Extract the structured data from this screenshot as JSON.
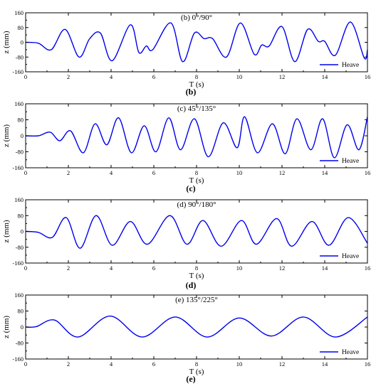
{
  "chart_data": [
    {
      "panel": "b",
      "type": "line",
      "title": "(b) 0°/90°",
      "caption": "(b)",
      "xlabel": "T (s)",
      "ylabel": "z (mm)",
      "xlim": [
        0,
        16
      ],
      "ylim": [
        -160,
        160
      ],
      "xticks": [
        0,
        2,
        4,
        6,
        8,
        10,
        12,
        14,
        16
      ],
      "yticks": [
        -160,
        -80,
        0,
        80,
        160
      ],
      "legend_position": "bottom-right",
      "grid": false,
      "series": [
        {
          "name": "Heave",
          "color": "#0000ee",
          "x": [
            0,
            0.6,
            1.2,
            1.85,
            2.5,
            3.0,
            3.5,
            4.05,
            4.9,
            5.3,
            5.65,
            5.95,
            6.8,
            7.35,
            7.9,
            8.35,
            8.75,
            9.4,
            10.05,
            10.7,
            11.05,
            11.4,
            12.0,
            12.6,
            13.2,
            13.7,
            14.0,
            14.5,
            15.2,
            15.85,
            16.0
          ],
          "y": [
            0,
            -5,
            -40,
            70,
            -80,
            20,
            50,
            -100,
            95,
            -55,
            -20,
            -40,
            105,
            -105,
            50,
            20,
            20,
            -80,
            105,
            -65,
            -15,
            -20,
            85,
            -105,
            70,
            5,
            5,
            -70,
            110,
            -85,
            -40
          ]
        }
      ]
    },
    {
      "panel": "c",
      "type": "line",
      "title": "(c) 45°/135°",
      "caption": "(c)",
      "xlabel": "T (s)",
      "ylabel": "z (mm)",
      "xlim": [
        0,
        16
      ],
      "ylim": [
        -160,
        160
      ],
      "xticks": [
        0,
        2,
        4,
        6,
        8,
        10,
        12,
        14,
        16
      ],
      "yticks": [
        -160,
        -80,
        0,
        80,
        160
      ],
      "legend_position": "bottom-right",
      "grid": false,
      "series": [
        {
          "name": "Heave",
          "color": "#0000ee",
          "x": [
            0,
            0.6,
            1.15,
            1.6,
            2.1,
            2.7,
            3.25,
            3.8,
            4.35,
            4.95,
            5.55,
            6.1,
            6.7,
            7.25,
            7.9,
            8.55,
            9.25,
            9.9,
            10.25,
            10.85,
            11.55,
            12.15,
            12.7,
            13.35,
            13.9,
            14.45,
            15.05,
            15.6,
            16.0
          ],
          "y": [
            0,
            0,
            18,
            -25,
            25,
            -85,
            60,
            -45,
            90,
            -85,
            50,
            -80,
            90,
            -70,
            85,
            -105,
            65,
            -60,
            95,
            -85,
            60,
            -90,
            85,
            -70,
            85,
            -110,
            55,
            -70,
            95
          ]
        }
      ]
    },
    {
      "panel": "d",
      "type": "line",
      "title": "(d) 90°/180°",
      "caption": "(d)",
      "xlabel": "T (s)",
      "ylabel": "z (mm)",
      "xlim": [
        0,
        16
      ],
      "ylim": [
        -160,
        160
      ],
      "xticks": [
        0,
        2,
        4,
        6,
        8,
        10,
        12,
        14,
        16
      ],
      "yticks": [
        -160,
        -80,
        0,
        80,
        160
      ],
      "legend_position": "bottom-right",
      "grid": false,
      "series": [
        {
          "name": "Heave",
          "color": "#0000ee",
          "x": [
            0,
            0.6,
            1.25,
            1.9,
            2.55,
            3.3,
            4.05,
            4.9,
            5.7,
            6.75,
            7.55,
            8.3,
            9.15,
            10.1,
            10.8,
            11.75,
            12.45,
            13.4,
            14.2,
            15.1,
            16.0
          ],
          "y": [
            0,
            -5,
            -30,
            70,
            -85,
            80,
            -70,
            50,
            -65,
            80,
            -65,
            55,
            -75,
            55,
            -65,
            65,
            -75,
            50,
            -70,
            70,
            -60
          ]
        }
      ]
    },
    {
      "panel": "e",
      "type": "line",
      "title": "(e) 135°/225°",
      "caption": "(e)",
      "xlabel": "T (s)",
      "ylabel": "z (mm)",
      "xlim": [
        0,
        16
      ],
      "ylim": [
        -160,
        160
      ],
      "xticks": [
        0,
        2,
        4,
        6,
        8,
        10,
        12,
        14,
        16
      ],
      "yticks": [
        -160,
        -80,
        0,
        80,
        160
      ],
      "legend_position": "bottom-right",
      "grid": false,
      "series": [
        {
          "name": "Heave",
          "color": "#0000ee",
          "x": [
            0,
            0.5,
            1.35,
            2.45,
            3.95,
            5.45,
            7.0,
            8.5,
            10.0,
            11.5,
            13.0,
            14.5,
            16.0
          ],
          "y": [
            0,
            2,
            35,
            -50,
            55,
            -50,
            50,
            -50,
            45,
            -45,
            50,
            -50,
            50
          ]
        }
      ]
    }
  ]
}
